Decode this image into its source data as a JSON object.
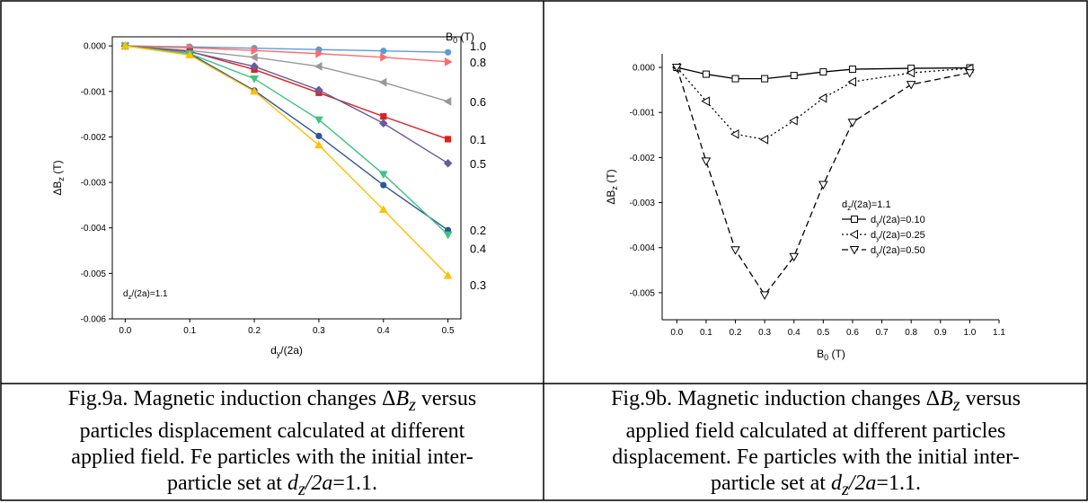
{
  "captions": {
    "left": {
      "line1_pre": "Fig.9a. Magnetic induction changes Δ",
      "line1_var": "B",
      "line1_sub": "z",
      "line1_post": " versus",
      "line2": "particles displacement calculated at different",
      "line3": "applied field. Fe particles with the initial inter-",
      "line4_pre": "particle set at ",
      "line4_var": "d",
      "line4_sub": "z",
      "line4_var2": "/2a",
      "line4_post": "=1.1."
    },
    "right": {
      "line1_pre": "Fig.9b. Magnetic induction changes Δ",
      "line1_var": "B",
      "line1_sub": "z",
      "line1_post": " versus",
      "line2": "applied field calculated at different particles",
      "line3": "displacement. Fe particles with the initial inter-",
      "line4_pre": "particle set at ",
      "line4_var": "d",
      "line4_sub": "z",
      "line4_var2": "/2a",
      "line4_post": "=1.1."
    }
  },
  "chart_data": [
    {
      "type": "line",
      "xlabel": "d_y/(2a)",
      "ylabel": "ΔB_z (T)",
      "xlim": [
        -0.02,
        0.52
      ],
      "ylim": [
        -0.006,
        0.0002
      ],
      "x_ticks": [
        0.0,
        0.1,
        0.2,
        0.3,
        0.4,
        0.5
      ],
      "x_tick_labels": [
        "0.0",
        "0.1",
        "0.2",
        "0.3",
        "0.4",
        "0.5"
      ],
      "y_ticks": [
        0.0,
        -0.001,
        -0.002,
        -0.003,
        -0.004,
        -0.005,
        -0.006
      ],
      "y_tick_labels": [
        "0.000",
        "-0.001",
        "-0.002",
        "-0.003",
        "-0.004",
        "-0.005",
        "-0.006"
      ],
      "legend_title": "B_0 (T)",
      "annotation": "d_z/(2a)=1.1",
      "x": [
        0.0,
        0.1,
        0.2,
        0.3,
        0.4,
        0.5
      ],
      "series": [
        {
          "name": "1.0",
          "color": "#5b9bd5",
          "marker": "circle",
          "values": [
            0.0,
            -2e-05,
            -5e-05,
            -8e-05,
            -0.00011,
            -0.00014
          ]
        },
        {
          "name": "0.8",
          "color": "#ff6b6b",
          "marker": "triangle-right",
          "values": [
            0.0,
            -4e-05,
            -0.0001,
            -0.00017,
            -0.00025,
            -0.00035
          ]
        },
        {
          "name": "0.6",
          "color": "#999999",
          "marker": "triangle-left",
          "values": [
            0.0,
            -0.0001,
            -0.00025,
            -0.00045,
            -0.0008,
            -0.00122
          ]
        },
        {
          "name": "0.1",
          "color": "#e02020",
          "marker": "square",
          "values": [
            0.0,
            -0.00012,
            -0.00052,
            -0.00103,
            -0.00155,
            -0.00205
          ]
        },
        {
          "name": "0.5",
          "color": "#6a5a9e",
          "marker": "diamond",
          "values": [
            0.0,
            -0.00013,
            -0.00045,
            -0.00097,
            -0.0017,
            -0.00258
          ]
        },
        {
          "name": "0.2",
          "color": "#2f5597",
          "marker": "circle",
          "values": [
            0.0,
            -0.00017,
            -0.00098,
            -0.00198,
            -0.00306,
            -0.00405
          ]
        },
        {
          "name": "0.4",
          "color": "#3dc47e",
          "marker": "triangle-down",
          "values": [
            0.0,
            -0.00017,
            -0.00072,
            -0.00162,
            -0.00282,
            -0.00415
          ]
        },
        {
          "name": "0.3",
          "color": "#ffc000",
          "marker": "triangle-up",
          "values": [
            0.0,
            -0.0002,
            -0.001,
            -0.00218,
            -0.0036,
            -0.00505
          ]
        }
      ],
      "label_values": [
        0.0,
        -0.00035,
        -0.00122,
        -0.00205,
        -0.00258,
        -0.00405,
        -0.00445,
        -0.00525
      ]
    },
    {
      "type": "line",
      "xlabel": "B_0 (T)",
      "ylabel": "ΔB_z (T)",
      "xlim": [
        -0.05,
        1.1
      ],
      "ylim": [
        -0.0056,
        0.0003
      ],
      "x_ticks": [
        0.0,
        0.1,
        0.2,
        0.3,
        0.4,
        0.5,
        0.6,
        0.7,
        0.8,
        0.9,
        1.0,
        1.1
      ],
      "x_tick_labels": [
        "0.0",
        "0.1",
        "0.2",
        "0.3",
        "0.4",
        "0.5",
        "0.6",
        "0.7",
        "0.8",
        "0.9",
        "1.0",
        "1.1"
      ],
      "y_ticks": [
        0.0,
        -0.001,
        -0.002,
        -0.003,
        -0.004,
        -0.005
      ],
      "y_tick_labels": [
        "0.000",
        "-0.001",
        "-0.002",
        "-0.003",
        "-0.004",
        "-0.005"
      ],
      "legend_title": "d_z/(2a)=1.1",
      "x": [
        0.0,
        0.1,
        0.2,
        0.3,
        0.4,
        0.5,
        0.6,
        0.8,
        1.0
      ],
      "series": [
        {
          "name": "d_y/(2a)=0.10",
          "color": "#000000",
          "dash": "solid",
          "marker": "square-open",
          "values": [
            0.0,
            -0.00015,
            -0.00025,
            -0.00025,
            -0.00018,
            -0.0001,
            -4e-05,
            -2e-05,
            -1e-05
          ]
        },
        {
          "name": "d_y/(2a)=0.25",
          "color": "#000000",
          "dash": "dot",
          "marker": "triangle-left-open",
          "values": [
            0.0,
            -0.00075,
            -0.00148,
            -0.0016,
            -0.00118,
            -0.00068,
            -0.00032,
            -0.00012,
            -2e-05
          ]
        },
        {
          "name": "d_y/(2a)=0.50",
          "color": "#000000",
          "dash": "dash",
          "marker": "triangle-down-open",
          "values": [
            0.0,
            -0.00208,
            -0.00405,
            -0.00505,
            -0.0042,
            -0.0026,
            -0.00122,
            -0.00038,
            -0.00012
          ]
        }
      ]
    }
  ]
}
